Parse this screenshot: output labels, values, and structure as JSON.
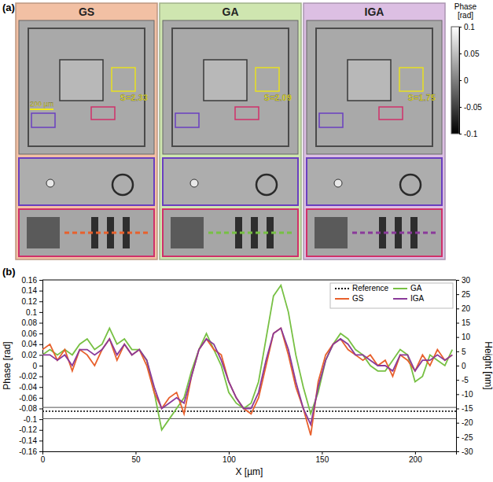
{
  "chart_data": [
    {
      "type": "image",
      "panel_label": "(a)",
      "panels": [
        {
          "title": "GS",
          "color": "#f2c0a4",
          "s_label": "S=2.33",
          "profile_color": "#e8602c"
        },
        {
          "title": "GA",
          "color": "#cfe6b0",
          "s_label": "S=2.09",
          "profile_color": "#77c043"
        },
        {
          "title": "IGA",
          "color": "#dcbfe3",
          "s_label": "S=1.75",
          "profile_color": "#8a3a9a"
        }
      ],
      "scale_bar": "200 µm",
      "colorbar": {
        "title": "Phase [rad]",
        "range": [
          -0.1,
          0.1
        ],
        "ticks": [
          0.1,
          0.05,
          0,
          -0.05,
          -0.1
        ]
      }
    },
    {
      "type": "line",
      "panel_label": "(b)",
      "x_label": "X [µm]",
      "y_label": "Phase [rad]",
      "y2_label": "Height [nm]",
      "x": [
        0,
        4,
        8,
        12,
        16,
        20,
        24,
        28,
        32,
        36,
        40,
        44,
        48,
        52,
        56,
        60,
        64,
        68,
        72,
        76,
        80,
        84,
        88,
        92,
        96,
        100,
        104,
        108,
        112,
        116,
        120,
        124,
        128,
        132,
        136,
        140,
        144,
        148,
        152,
        156,
        160,
        164,
        168,
        172,
        176,
        180,
        184,
        188,
        192,
        196,
        200,
        204,
        208,
        212,
        216,
        220
      ],
      "series": [
        {
          "name": "GA",
          "color": "#77c043",
          "values": [
            0.02,
            0.03,
            0.02,
            0.03,
            0.02,
            0.04,
            0.05,
            0.03,
            0.04,
            0.07,
            0.04,
            0.05,
            0.03,
            0.03,
            0.01,
            -0.05,
            -0.12,
            -0.1,
            -0.08,
            -0.06,
            -0.01,
            0.03,
            0.06,
            0.03,
            0.0,
            -0.05,
            -0.07,
            -0.08,
            -0.07,
            -0.03,
            0.05,
            0.13,
            0.15,
            0.1,
            0.02,
            -0.04,
            -0.09,
            -0.05,
            0.01,
            0.04,
            0.06,
            0.05,
            0.03,
            0.02,
            0.0,
            -0.01,
            -0.01,
            0.01,
            0.03,
            0.02,
            -0.03,
            -0.02,
            0.02,
            0.01,
            0.0,
            0.03
          ]
        },
        {
          "name": "GS",
          "color": "#e8602c",
          "values": [
            0.03,
            0.04,
            0.01,
            0.03,
            -0.01,
            0.03,
            0.02,
            0.0,
            0.03,
            0.05,
            0.01,
            0.04,
            0.02,
            0.03,
            0.0,
            -0.05,
            -0.08,
            -0.06,
            -0.05,
            -0.09,
            -0.02,
            0.03,
            0.05,
            0.03,
            0.02,
            -0.03,
            -0.06,
            -0.08,
            -0.09,
            -0.06,
            0.0,
            0.06,
            0.07,
            0.02,
            -0.04,
            -0.08,
            -0.13,
            -0.03,
            0.02,
            0.04,
            0.05,
            0.03,
            0.02,
            0.01,
            0.02,
            0.0,
            0.01,
            -0.02,
            0.02,
            0.01,
            -0.01,
            0.02,
            0.0,
            0.03,
            0.01,
            0.02
          ]
        },
        {
          "name": "IGA",
          "color": "#8a3a9a",
          "values": [
            0.02,
            0.02,
            0.01,
            0.02,
            0.0,
            0.03,
            0.03,
            0.02,
            0.03,
            0.05,
            0.02,
            0.04,
            0.02,
            0.03,
            0.01,
            -0.04,
            -0.08,
            -0.07,
            -0.06,
            -0.07,
            -0.02,
            0.03,
            0.05,
            0.04,
            0.01,
            -0.03,
            -0.06,
            -0.08,
            -0.08,
            -0.05,
            0.01,
            0.06,
            0.07,
            0.03,
            -0.03,
            -0.08,
            -0.11,
            -0.04,
            0.01,
            0.04,
            0.05,
            0.04,
            0.02,
            0.02,
            0.01,
            0.0,
            0.0,
            -0.01,
            0.02,
            0.02,
            -0.01,
            0.01,
            0.01,
            0.02,
            0.01,
            0.02
          ]
        }
      ],
      "reference": {
        "name": "Reference",
        "value": -0.085,
        "color": "#000000",
        "line_style": "dotted"
      },
      "reference_band": [
        -0.099,
        -0.078
      ],
      "xlim": [
        0,
        222
      ],
      "xticks": [
        0,
        50,
        100,
        150,
        200
      ],
      "ylim": [
        -0.16,
        0.16
      ],
      "yticks": [
        -0.16,
        -0.14,
        -0.12,
        -0.1,
        -0.08,
        -0.06,
        -0.04,
        -0.02,
        0,
        0.02,
        0.04,
        0.06,
        0.08,
        0.1,
        0.12,
        0.14,
        0.16
      ],
      "y2lim": [
        -30,
        30
      ],
      "y2ticks": [
        -30,
        -25,
        -20,
        -15,
        -10,
        -5,
        0,
        5,
        10,
        15,
        20,
        25,
        30
      ],
      "legend": "upper right"
    }
  ]
}
